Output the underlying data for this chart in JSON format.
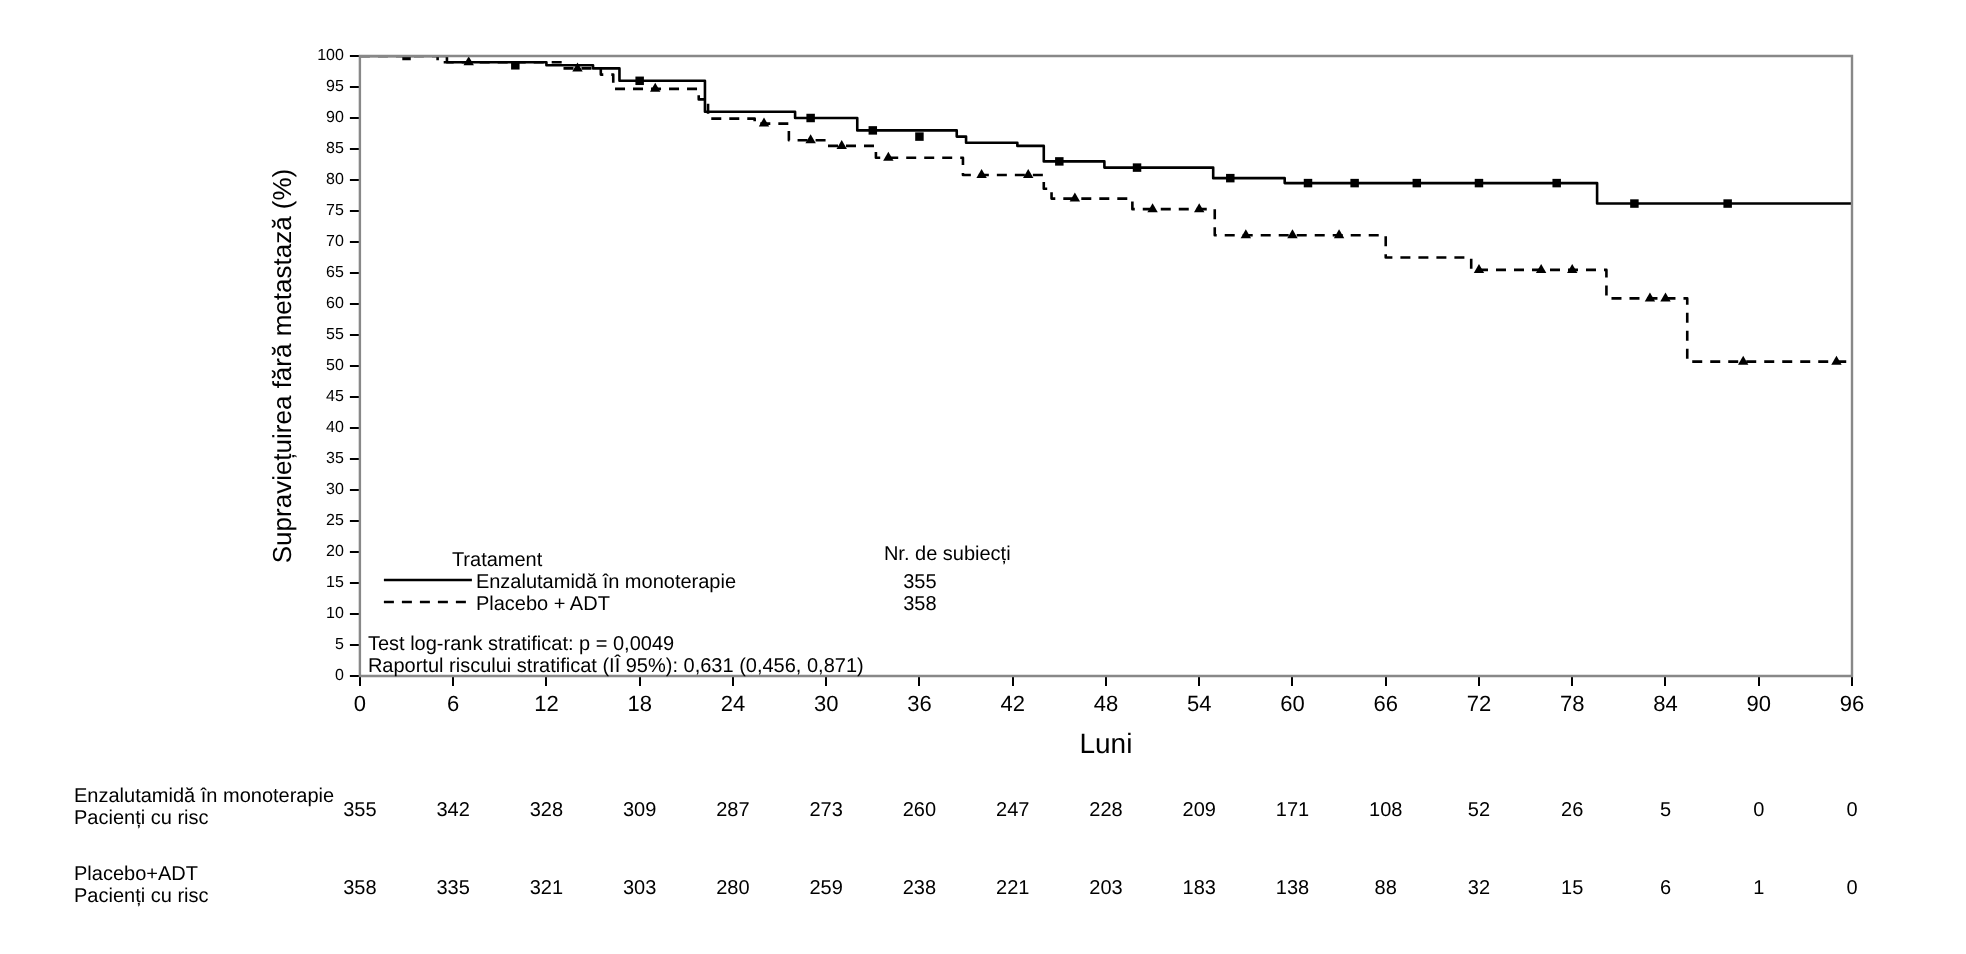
{
  "chart_data": {
    "type": "step",
    "xlabel": "Luni",
    "ylabel": "Supraviețuirea fără metastază (%)",
    "legend_title": "Tratament",
    "legend": "bottom left",
    "grid": false,
    "xlim": [
      0,
      96
    ],
    "xticks": [
      0,
      6,
      12,
      18,
      24,
      30,
      36,
      42,
      48,
      54,
      60,
      66,
      72,
      78,
      84,
      90,
      96
    ],
    "ylim": [
      0,
      100
    ],
    "yticks": [
      0,
      5,
      10,
      15,
      20,
      25,
      30,
      35,
      40,
      45,
      50,
      55,
      60,
      65,
      70,
      75,
      80,
      85,
      90,
      95,
      100
    ],
    "series": [
      {
        "name": "Enzalutamidă în monoterapie",
        "color": "#000000",
        "line_style": "solid",
        "marker": "none",
        "x": [
          0,
          5.6,
          12,
          15,
          16.7,
          22.2,
          28,
          32,
          38.4,
          39,
          42.3,
          44,
          47.9,
          54.9,
          59.5,
          79.6,
          96
        ],
        "values": [
          100,
          99,
          98.5,
          98,
          96,
          91,
          90,
          88,
          87,
          86,
          85.5,
          83,
          82,
          80.3,
          79.5,
          76.2,
          76.2
        ]
      },
      {
        "name": "Placebo + ADT",
        "color": "#000000",
        "line_style": "dashed",
        "marker": "none",
        "x": [
          0,
          5,
          13,
          15.5,
          16.3,
          21.8,
          22.4,
          25.4,
          27.6,
          30,
          33.2,
          38.8,
          44,
          44.5,
          49.7,
          55,
          66,
          71.5,
          80.2,
          85.4,
          96
        ],
        "values": [
          100,
          99,
          98,
          97,
          94.7,
          93,
          89.9,
          89.1,
          86.4,
          85.5,
          83.6,
          80.8,
          78.6,
          77,
          75.3,
          71.1,
          67.5,
          65.5,
          60.9,
          50.7,
          50.7
        ]
      },
      {
        "type": "scatter",
        "color": "#000000",
        "marker": "square",
        "x": [
          3,
          10,
          18,
          29,
          33,
          36,
          45,
          50,
          56,
          61,
          64,
          68,
          72,
          77,
          82,
          88
        ],
        "values": [
          100,
          98.5,
          96,
          90,
          88,
          87,
          83,
          82,
          80.3,
          79.5,
          79.5,
          79.5,
          79.5,
          79.5,
          76.2,
          76.2
        ]
      },
      {
        "type": "scatter",
        "color": "#000000",
        "marker": "triangle",
        "x": [
          7,
          14,
          19,
          26,
          29,
          31,
          34,
          40,
          43,
          46,
          51,
          54,
          57,
          60,
          63,
          72,
          76,
          78,
          83,
          84,
          89,
          95
        ],
        "values": [
          99,
          98,
          94.7,
          89.1,
          86.4,
          85.5,
          83.6,
          80.8,
          80.8,
          77,
          75.3,
          75.3,
          71.1,
          71.1,
          71.1,
          65.5,
          65.5,
          65.5,
          60.9,
          60.9,
          50.7,
          50.7
        ]
      }
    ],
    "annotations": [
      "Nr. de subiecți",
      "355",
      "358",
      "Test log-rank stratificat: p = 0,0049",
      "Raportul riscului stratificat (IÎ 95%): 0,631 (0,456, 0,871)",
      "Enzalutamidă în monoterapie",
      "Pacienți cu risc",
      "355",
      "342",
      "328",
      "309",
      "287",
      "273",
      "260",
      "247",
      "228",
      "209",
      "171",
      "108",
      "52",
      "26",
      "5",
      "0",
      "0",
      "Placebo+ADT",
      "Pacienți cu risc",
      "358",
      "335",
      "321",
      "303",
      "280",
      "259",
      "238",
      "221",
      "203",
      "183",
      "138",
      "88",
      "32",
      "15",
      "6",
      "1",
      "0"
    ]
  }
}
